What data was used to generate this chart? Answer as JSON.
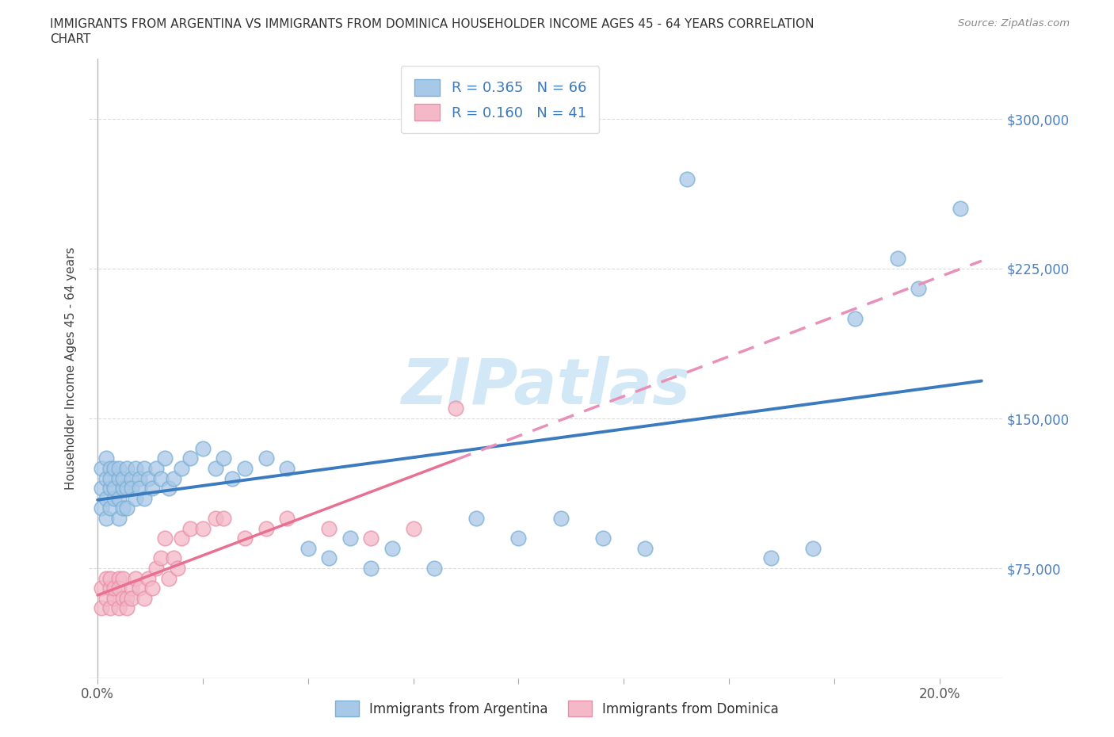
{
  "title_line1": "IMMIGRANTS FROM ARGENTINA VS IMMIGRANTS FROM DOMINICA HOUSEHOLDER INCOME AGES 45 - 64 YEARS CORRELATION",
  "title_line2": "CHART",
  "source_text": "Source: ZipAtlas.com",
  "ylabel": "Householder Income Ages 45 - 64 years",
  "watermark": "ZIPatlas",
  "argentina_color": "#a8c8e8",
  "argentina_edge_color": "#7aafd4",
  "dominica_color": "#f4b8c8",
  "dominica_edge_color": "#e890a8",
  "argentina_line_color": "#3a7abf",
  "dominica_line_solid_color": "#e87090",
  "dominica_line_dash_color": "#e890b8",
  "argentina_label": "Immigrants from Argentina",
  "dominica_label": "Immigrants from Dominica",
  "xlim": [
    -0.002,
    0.215
  ],
  "ylim": [
    20000,
    330000
  ],
  "yticks": [
    75000,
    150000,
    225000,
    300000
  ],
  "ytick_labels": [
    "$75,000",
    "$150,000",
    "$225,000",
    "$300,000"
  ],
  "xtick_labels_shown": [
    "0.0%",
    "20.0%"
  ],
  "grid_color": "#cccccc",
  "background_color": "#ffffff",
  "argentina_x": [
    0.001,
    0.001,
    0.001,
    0.002,
    0.002,
    0.002,
    0.002,
    0.003,
    0.003,
    0.003,
    0.003,
    0.004,
    0.004,
    0.004,
    0.005,
    0.005,
    0.005,
    0.005,
    0.006,
    0.006,
    0.006,
    0.007,
    0.007,
    0.007,
    0.008,
    0.008,
    0.009,
    0.009,
    0.01,
    0.01,
    0.011,
    0.011,
    0.012,
    0.013,
    0.014,
    0.015,
    0.016,
    0.017,
    0.018,
    0.02,
    0.022,
    0.025,
    0.028,
    0.03,
    0.032,
    0.035,
    0.04,
    0.045,
    0.05,
    0.055,
    0.06,
    0.065,
    0.07,
    0.08,
    0.09,
    0.1,
    0.11,
    0.12,
    0.13,
    0.14,
    0.16,
    0.17,
    0.18,
    0.19,
    0.195,
    0.205
  ],
  "argentina_y": [
    115000,
    125000,
    105000,
    120000,
    110000,
    130000,
    100000,
    115000,
    125000,
    105000,
    120000,
    110000,
    125000,
    115000,
    120000,
    110000,
    125000,
    100000,
    115000,
    105000,
    120000,
    115000,
    125000,
    105000,
    120000,
    115000,
    125000,
    110000,
    120000,
    115000,
    125000,
    110000,
    120000,
    115000,
    125000,
    120000,
    130000,
    115000,
    120000,
    125000,
    130000,
    135000,
    125000,
    130000,
    120000,
    125000,
    130000,
    125000,
    85000,
    80000,
    90000,
    75000,
    85000,
    75000,
    100000,
    90000,
    100000,
    90000,
    85000,
    270000,
    80000,
    85000,
    200000,
    230000,
    215000,
    255000
  ],
  "dominica_x": [
    0.001,
    0.001,
    0.002,
    0.002,
    0.003,
    0.003,
    0.003,
    0.004,
    0.004,
    0.005,
    0.005,
    0.005,
    0.006,
    0.006,
    0.007,
    0.007,
    0.008,
    0.008,
    0.009,
    0.01,
    0.011,
    0.012,
    0.013,
    0.014,
    0.015,
    0.016,
    0.017,
    0.018,
    0.019,
    0.02,
    0.022,
    0.025,
    0.028,
    0.03,
    0.035,
    0.04,
    0.045,
    0.055,
    0.065,
    0.075,
    0.085
  ],
  "dominica_y": [
    65000,
    55000,
    70000,
    60000,
    65000,
    55000,
    70000,
    60000,
    65000,
    70000,
    55000,
    65000,
    60000,
    70000,
    60000,
    55000,
    65000,
    60000,
    70000,
    65000,
    60000,
    70000,
    65000,
    75000,
    80000,
    90000,
    70000,
    80000,
    75000,
    90000,
    95000,
    95000,
    100000,
    100000,
    90000,
    95000,
    100000,
    95000,
    90000,
    95000,
    155000
  ]
}
